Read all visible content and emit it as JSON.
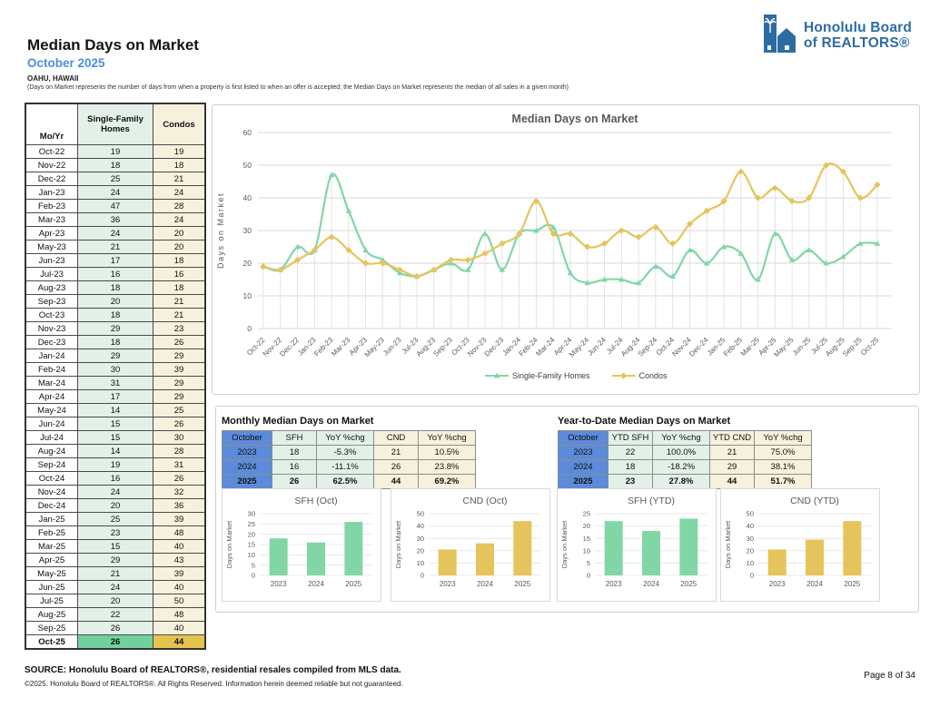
{
  "page": {
    "title": "Median Days on Market",
    "subtitle": "October 2025",
    "region": "OAHU, HAWAII",
    "note": "(Days on Market represents the number of days from when a property is first listed to when an offer is accepted; the Median Days on Market represents the median of all sales in a given month)"
  },
  "logo": {
    "line1": "Honolulu Board",
    "line2": "of REALTORS®"
  },
  "dom_table": {
    "headers": [
      "Mo/Yr",
      "Single-Family Homes",
      "Condos"
    ],
    "rows": [
      [
        "Oct-22",
        19,
        19
      ],
      [
        "Nov-22",
        18,
        18
      ],
      [
        "Dec-22",
        25,
        21
      ],
      [
        "Jan-23",
        24,
        24
      ],
      [
        "Feb-23",
        47,
        28
      ],
      [
        "Mar-23",
        36,
        24
      ],
      [
        "Apr-23",
        24,
        20
      ],
      [
        "May-23",
        21,
        20
      ],
      [
        "Jun-23",
        17,
        18
      ],
      [
        "Jul-23",
        16,
        16
      ],
      [
        "Aug-23",
        18,
        18
      ],
      [
        "Sep-23",
        20,
        21
      ],
      [
        "Oct-23",
        18,
        21
      ],
      [
        "Nov-23",
        29,
        23
      ],
      [
        "Dec-23",
        18,
        26
      ],
      [
        "Jan-24",
        29,
        29
      ],
      [
        "Feb-24",
        30,
        39
      ],
      [
        "Mar-24",
        31,
        29
      ],
      [
        "Apr-24",
        17,
        29
      ],
      [
        "May-24",
        14,
        25
      ],
      [
        "Jun-24",
        15,
        26
      ],
      [
        "Jul-24",
        15,
        30
      ],
      [
        "Aug-24",
        14,
        28
      ],
      [
        "Sep-24",
        19,
        31
      ],
      [
        "Oct-24",
        16,
        26
      ],
      [
        "Nov-24",
        24,
        32
      ],
      [
        "Dec-24",
        20,
        36
      ],
      [
        "Jan-25",
        25,
        39
      ],
      [
        "Feb-25",
        23,
        48
      ],
      [
        "Mar-25",
        15,
        40
      ],
      [
        "Apr-25",
        29,
        43
      ],
      [
        "May-25",
        21,
        39
      ],
      [
        "Jun-25",
        24,
        40
      ],
      [
        "Jul-25",
        20,
        50
      ],
      [
        "Aug-25",
        22,
        48
      ],
      [
        "Sep-25",
        26,
        40
      ],
      [
        "Oct-25",
        26,
        44
      ]
    ]
  },
  "monthly_table": {
    "title": "Monthly Median Days on Market",
    "headers": [
      "October",
      "SFH",
      "YoY %chg",
      "CND",
      "YoY %chg"
    ],
    "rows": [
      [
        "2023",
        "18",
        "-5.3%",
        "21",
        "10.5%"
      ],
      [
        "2024",
        "16",
        "-11.1%",
        "26",
        "23.8%"
      ],
      [
        "2025",
        "26",
        "62.5%",
        "44",
        "69.2%"
      ]
    ]
  },
  "ytd_table": {
    "title": "Year-to-Date Median Days on Market",
    "headers": [
      "October",
      "YTD SFH",
      "YoY %chg",
      "YTD CND",
      "YoY %chg"
    ],
    "rows": [
      [
        "2023",
        "22",
        "100.0%",
        "21",
        "75.0%"
      ],
      [
        "2024",
        "18",
        "-18.2%",
        "29",
        "38.1%"
      ],
      [
        "2025",
        "23",
        "27.8%",
        "44",
        "51.7%"
      ]
    ]
  },
  "chart_data": [
    {
      "id": "main_line",
      "type": "line",
      "title": "Median Days on Market",
      "ylabel": "Days on Market",
      "ylim": [
        0,
        60
      ],
      "yticks": [
        0,
        10,
        20,
        30,
        40,
        50,
        60
      ],
      "grid": true,
      "drop_lines": true,
      "legend_position": "bottom",
      "categories": [
        "Oct-22",
        "Nov-22",
        "Dec-22",
        "Jan-23",
        "Feb-23",
        "Mar-23",
        "Apr-23",
        "May-23",
        "Jun-23",
        "Jul-23",
        "Aug-23",
        "Sep-23",
        "Oct-23",
        "Nov-23",
        "Dec-23",
        "Jan-24",
        "Feb-24",
        "Mar-24",
        "Apr-24",
        "May-24",
        "Jun-24",
        "Jul-24",
        "Aug-24",
        "Sep-24",
        "Oct-24",
        "Nov-24",
        "Dec-24",
        "Jan-25",
        "Feb-25",
        "Mar-25",
        "Apr-25",
        "May-25",
        "Jun-25",
        "Jul-25",
        "Aug-25",
        "Sep-25",
        "Oct-25"
      ],
      "series": [
        {
          "name": "Single-Family Homes",
          "color": "#82D6A6",
          "marker": "triangle",
          "values": [
            19,
            18,
            25,
            24,
            47,
            36,
            24,
            21,
            17,
            16,
            18,
            20,
            18,
            29,
            18,
            29,
            30,
            31,
            17,
            14,
            15,
            15,
            14,
            19,
            16,
            24,
            20,
            25,
            23,
            15,
            29,
            21,
            24,
            20,
            22,
            26,
            26
          ]
        },
        {
          "name": "Condos",
          "color": "#E6C45C",
          "marker": "diamond",
          "values": [
            19,
            18,
            21,
            24,
            28,
            24,
            20,
            20,
            18,
            16,
            18,
            21,
            21,
            23,
            26,
            29,
            39,
            29,
            29,
            25,
            26,
            30,
            28,
            31,
            26,
            32,
            36,
            39,
            48,
            40,
            43,
            39,
            40,
            50,
            48,
            40,
            44
          ]
        }
      ]
    },
    {
      "id": "sfh_oct",
      "type": "bar",
      "title": "SFH (Oct)",
      "ylabel": "Days on Market",
      "ylim": [
        0,
        30
      ],
      "yticks": [
        0,
        5,
        10,
        15,
        20,
        25,
        30
      ],
      "categories": [
        "2023",
        "2024",
        "2025"
      ],
      "values": [
        18,
        16,
        26
      ],
      "color": "#82D6A6"
    },
    {
      "id": "cnd_oct",
      "type": "bar",
      "title": "CND (Oct)",
      "ylabel": "Days on Market",
      "ylim": [
        0,
        50
      ],
      "yticks": [
        0,
        10,
        20,
        30,
        40,
        50
      ],
      "categories": [
        "2023",
        "2024",
        "2025"
      ],
      "values": [
        21,
        26,
        44
      ],
      "color": "#E6C45C"
    },
    {
      "id": "sfh_ytd",
      "type": "bar",
      "title": "SFH (YTD)",
      "ylabel": "Days on Market",
      "ylim": [
        0,
        25
      ],
      "yticks": [
        0,
        5,
        10,
        15,
        20,
        25
      ],
      "categories": [
        "2023",
        "2024",
        "2025"
      ],
      "values": [
        22,
        18,
        23
      ],
      "color": "#82D6A6"
    },
    {
      "id": "cnd_ytd",
      "type": "bar",
      "title": "CND (YTD)",
      "ylabel": "Days on Market",
      "ylim": [
        0,
        50
      ],
      "yticks": [
        0,
        10,
        20,
        30,
        40,
        50
      ],
      "categories": [
        "2023",
        "2024",
        "2025"
      ],
      "values": [
        21,
        29,
        44
      ],
      "color": "#E6C45C"
    }
  ],
  "footer": {
    "source": "SOURCE: Honolulu Board of REALTORS®, residential resales compiled from MLS data.",
    "copyright": "©2025. Honolulu Board of REALTORS®. All Rights Reserved. Information herein deemed reliable but not guaranteed.",
    "page": "Page 8 of 34"
  },
  "colors": {
    "sfh_line": "#82D6A6",
    "cnd_line": "#E6C45C",
    "sfh_cell": "#E2F0E7",
    "cnd_cell": "#F6F1DC",
    "sfh_highlight": "#71D19D",
    "cnd_highlight": "#E5C44D",
    "blue_cell": "#5C8BD9",
    "accent_blue": "#4B8FE2",
    "logo_blue": "#2D6CA2"
  }
}
